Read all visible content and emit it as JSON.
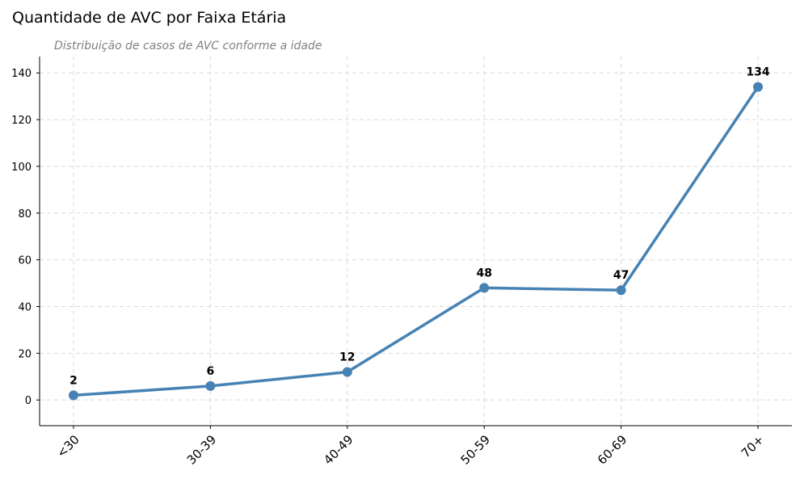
{
  "chart_data": {
    "type": "line",
    "title": "Quantidade de AVC por Faixa Etária",
    "subtitle": "Distribuição de casos de AVC conforme a idade",
    "xlabel": "",
    "ylabel": "",
    "categories": [
      "<30",
      "30-39",
      "40-49",
      "50-59",
      "60-69",
      "70+"
    ],
    "series": [
      {
        "values": [
          2,
          6,
          12,
          48,
          47,
          134
        ],
        "color": "#4682B4"
      }
    ],
    "ylim": [
      -11,
      147
    ],
    "yticks": [
      0,
      20,
      40,
      60,
      80,
      100,
      120,
      140
    ],
    "grid": true,
    "data_labels": true,
    "x_tick_rotation_deg": 45
  }
}
